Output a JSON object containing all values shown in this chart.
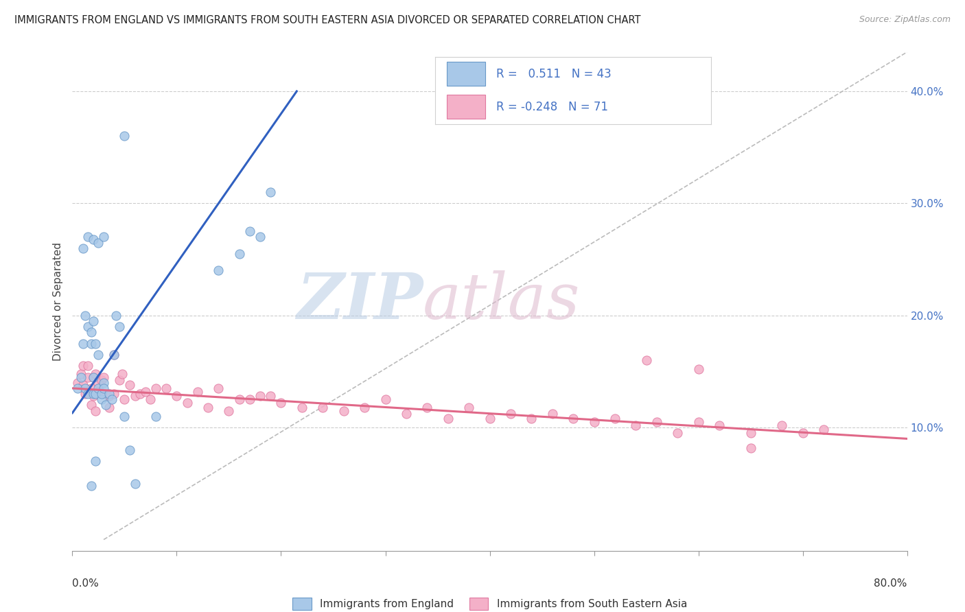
{
  "title": "IMMIGRANTS FROM ENGLAND VS IMMIGRANTS FROM SOUTH EASTERN ASIA DIVORCED OR SEPARATED CORRELATION CHART",
  "source": "Source: ZipAtlas.com",
  "ylabel": "Divorced or Separated",
  "ytick_values": [
    0.1,
    0.2,
    0.3,
    0.4
  ],
  "xlim": [
    0.0,
    0.8
  ],
  "ylim": [
    -0.01,
    0.435
  ],
  "england_color": "#a8c8e8",
  "sea_color": "#f4b0c8",
  "england_edge_color": "#6898c8",
  "sea_edge_color": "#e078a0",
  "england_line_color": "#3060c0",
  "sea_line_color": "#e06888",
  "ref_line_color": "#bbbbbb",
  "england_R": 0.511,
  "england_N": 43,
  "sea_R": -0.248,
  "sea_N": 71,
  "eng_x": [
    0.005,
    0.008,
    0.01,
    0.012,
    0.012,
    0.015,
    0.015,
    0.018,
    0.018,
    0.02,
    0.02,
    0.02,
    0.022,
    0.022,
    0.025,
    0.025,
    0.028,
    0.028,
    0.03,
    0.03,
    0.032,
    0.035,
    0.038,
    0.04,
    0.042,
    0.045,
    0.05,
    0.055,
    0.06,
    0.01,
    0.015,
    0.02,
    0.025,
    0.03,
    0.08,
    0.14,
    0.16,
    0.18,
    0.19,
    0.17,
    0.05,
    0.022,
    0.018
  ],
  "eng_y": [
    0.135,
    0.145,
    0.175,
    0.135,
    0.2,
    0.13,
    0.19,
    0.175,
    0.185,
    0.145,
    0.195,
    0.13,
    0.175,
    0.13,
    0.135,
    0.165,
    0.125,
    0.13,
    0.14,
    0.135,
    0.12,
    0.13,
    0.125,
    0.165,
    0.2,
    0.19,
    0.11,
    0.08,
    0.05,
    0.26,
    0.27,
    0.268,
    0.265,
    0.27,
    0.11,
    0.24,
    0.255,
    0.27,
    0.31,
    0.275,
    0.36,
    0.07,
    0.048
  ],
  "sea_x": [
    0.005,
    0.008,
    0.01,
    0.01,
    0.012,
    0.015,
    0.015,
    0.018,
    0.018,
    0.02,
    0.02,
    0.022,
    0.022,
    0.025,
    0.025,
    0.028,
    0.03,
    0.03,
    0.035,
    0.035,
    0.04,
    0.04,
    0.045,
    0.048,
    0.05,
    0.055,
    0.06,
    0.065,
    0.07,
    0.075,
    0.08,
    0.09,
    0.1,
    0.11,
    0.12,
    0.13,
    0.14,
    0.15,
    0.16,
    0.17,
    0.18,
    0.19,
    0.2,
    0.22,
    0.24,
    0.26,
    0.28,
    0.3,
    0.32,
    0.34,
    0.36,
    0.38,
    0.4,
    0.42,
    0.44,
    0.46,
    0.48,
    0.5,
    0.52,
    0.54,
    0.56,
    0.58,
    0.6,
    0.62,
    0.65,
    0.68,
    0.7,
    0.72,
    0.55,
    0.6,
    0.65
  ],
  "sea_y": [
    0.14,
    0.148,
    0.138,
    0.155,
    0.13,
    0.145,
    0.155,
    0.12,
    0.135,
    0.128,
    0.145,
    0.148,
    0.115,
    0.132,
    0.14,
    0.142,
    0.13,
    0.145,
    0.118,
    0.128,
    0.165,
    0.13,
    0.142,
    0.148,
    0.125,
    0.138,
    0.128,
    0.13,
    0.132,
    0.125,
    0.135,
    0.135,
    0.128,
    0.122,
    0.132,
    0.118,
    0.135,
    0.115,
    0.125,
    0.125,
    0.128,
    0.128,
    0.122,
    0.118,
    0.118,
    0.115,
    0.118,
    0.125,
    0.112,
    0.118,
    0.108,
    0.118,
    0.108,
    0.112,
    0.108,
    0.112,
    0.108,
    0.105,
    0.108,
    0.102,
    0.105,
    0.095,
    0.105,
    0.102,
    0.095,
    0.102,
    0.095,
    0.098,
    0.16,
    0.152,
    0.082
  ],
  "eng_line_x0": 0.0,
  "eng_line_y0": 0.113,
  "eng_line_x1": 0.215,
  "eng_line_y1": 0.4,
  "sea_line_x0": 0.0,
  "sea_line_y0": 0.135,
  "sea_line_x1": 0.8,
  "sea_line_y1": 0.09,
  "ref_line_x0": 0.03,
  "ref_line_y0": 0.0,
  "ref_line_x1": 0.8,
  "ref_line_y1": 0.435
}
